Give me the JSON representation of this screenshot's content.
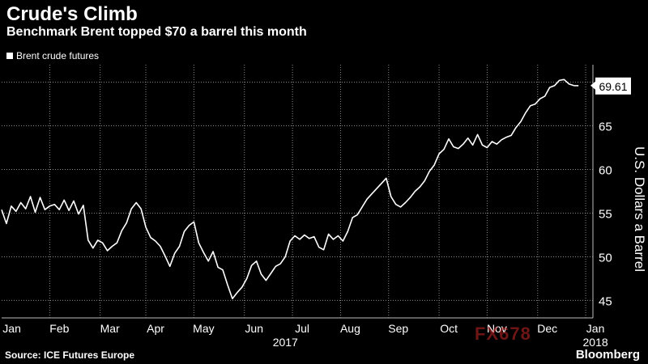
{
  "header": {
    "title": "Crude's Climb",
    "subtitle": "Benchmark Brent topped $70 a barrel this month"
  },
  "legend": {
    "label": "Brent crude futures"
  },
  "source": "Source: ICE Futures Europe",
  "brand": "Bloomberg",
  "watermark": "FX678",
  "chart_data": {
    "type": "line",
    "title": "Crude's Climb",
    "subtitle": "Benchmark Brent topped $70 a barrel this month",
    "ylabel": "U.S. Dollars a Barrel",
    "xlabel": "",
    "ylim": [
      43,
      72
    ],
    "yticks": [
      45,
      50,
      55,
      60,
      65
    ],
    "grid": true,
    "legend_position": "top-left",
    "x_ticks": [
      {
        "label": "Jan",
        "pos": 0.02
      },
      {
        "label": "Feb",
        "pos": 2.0
      },
      {
        "label": "Mar",
        "pos": 4.1
      },
      {
        "label": "Apr",
        "pos": 6.0
      },
      {
        "label": "May",
        "pos": 8.0
      },
      {
        "label": "Jun",
        "pos": 10.1
      },
      {
        "label": "Jul",
        "pos": 12.1
      },
      {
        "label": "Aug",
        "pos": 14.1
      },
      {
        "label": "Sep",
        "pos": 16.1
      },
      {
        "label": "Oct",
        "pos": 18.2
      },
      {
        "label": "Nov",
        "pos": 20.2
      },
      {
        "label": "Dec",
        "pos": 22.3
      },
      {
        "label": "Jan",
        "pos": 24.3
      }
    ],
    "year_labels": [
      {
        "label": "2017",
        "pos": 11.4
      },
      {
        "label": "2018",
        "pos": 24.3
      }
    ],
    "last_value_label": "69.61",
    "series": [
      {
        "name": "Brent crude futures",
        "x": [
          0.0,
          0.2,
          0.4,
          0.6,
          0.8,
          1.0,
          1.2,
          1.4,
          1.6,
          1.8,
          2.0,
          2.2,
          2.4,
          2.6,
          2.8,
          3.0,
          3.2,
          3.4,
          3.6,
          3.8,
          4.0,
          4.2,
          4.4,
          4.6,
          4.8,
          5.0,
          5.2,
          5.4,
          5.6,
          5.8,
          6.0,
          6.2,
          6.4,
          6.6,
          6.8,
          7.0,
          7.2,
          7.4,
          7.6,
          7.8,
          8.0,
          8.2,
          8.4,
          8.6,
          8.8,
          9.0,
          9.2,
          9.4,
          9.6,
          9.8,
          10.0,
          10.2,
          10.4,
          10.6,
          10.8,
          11.0,
          11.2,
          11.4,
          11.6,
          11.8,
          12.0,
          12.2,
          12.4,
          12.6,
          12.8,
          13.0,
          13.2,
          13.4,
          13.6,
          13.8,
          14.0,
          14.2,
          14.4,
          14.6,
          14.8,
          15.0,
          15.2,
          15.4,
          15.6,
          15.8,
          16.0,
          16.2,
          16.4,
          16.6,
          16.8,
          17.0,
          17.2,
          17.4,
          17.6,
          17.8,
          18.0,
          18.2,
          18.4,
          18.6,
          18.8,
          19.0,
          19.2,
          19.4,
          19.6,
          19.8,
          20.0,
          20.2,
          20.4,
          20.6,
          20.8,
          21.0,
          21.2,
          21.4,
          21.6,
          21.8,
          22.0,
          22.2,
          22.4,
          22.6,
          22.8,
          23.0,
          23.2,
          23.4,
          23.6,
          23.8,
          24.0
        ],
        "values": [
          55.4,
          53.8,
          55.8,
          55.2,
          56.2,
          55.5,
          56.9,
          55.1,
          56.8,
          55.4,
          55.8,
          56.0,
          55.4,
          56.5,
          55.3,
          56.4,
          54.9,
          55.9,
          51.9,
          51.0,
          51.9,
          51.6,
          50.7,
          51.2,
          51.6,
          53.0,
          53.9,
          55.5,
          56.2,
          55.5,
          53.4,
          52.2,
          51.8,
          51.2,
          50.1,
          48.9,
          50.4,
          51.2,
          52.9,
          53.6,
          54.0,
          51.6,
          50.5,
          49.5,
          50.6,
          48.8,
          48.5,
          46.8,
          45.2,
          45.9,
          46.5,
          47.5,
          49.0,
          49.5,
          48.0,
          47.3,
          48.1,
          48.9,
          49.2,
          50.0,
          51.8,
          52.4,
          52.0,
          52.5,
          52.1,
          52.3,
          51.1,
          50.8,
          52.6,
          52.0,
          52.4,
          51.8,
          52.9,
          54.5,
          54.8,
          55.7,
          56.6,
          57.2,
          57.8,
          58.4,
          59.0,
          56.9,
          56.0,
          55.7,
          56.2,
          56.8,
          57.5,
          58.0,
          58.7,
          59.8,
          60.5,
          61.8,
          62.3,
          63.5,
          62.6,
          62.4,
          62.9,
          63.6,
          62.8,
          64.0,
          62.8,
          62.5,
          63.2,
          62.9,
          63.4,
          63.7,
          63.9,
          64.8,
          65.5,
          66.5,
          67.3,
          67.5,
          68.1,
          68.4,
          69.4,
          69.6,
          70.2,
          70.3,
          69.8,
          69.61,
          69.6
        ]
      }
    ]
  }
}
